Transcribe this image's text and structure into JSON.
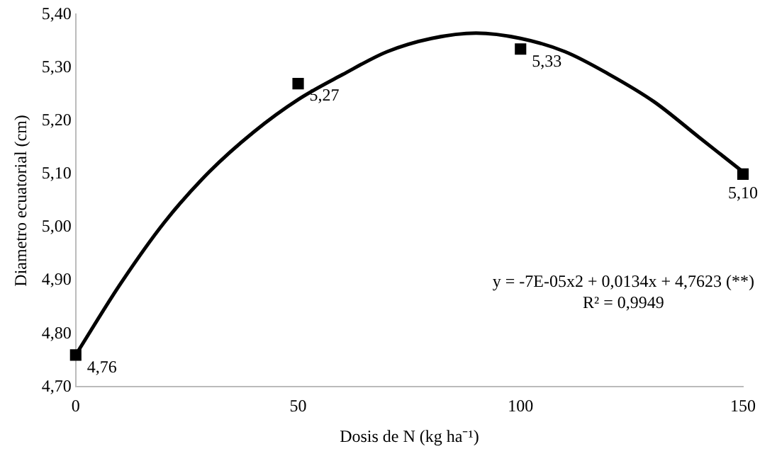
{
  "chart_data": {
    "type": "scatter",
    "xlabel": "Dosis de N (kg ha⁻¹)",
    "ylabel": "Diametro ecuatorial (cm)",
    "xlim": [
      0,
      150
    ],
    "xticks": [
      0,
      50,
      100,
      150
    ],
    "ylim": [
      4.7,
      5.4
    ],
    "yticks": [
      {
        "value": 4.7,
        "label": "4,70"
      },
      {
        "value": 4.8,
        "label": "4,80"
      },
      {
        "value": 4.9,
        "label": "4,90"
      },
      {
        "value": 5.0,
        "label": "5,00"
      },
      {
        "value": 5.1,
        "label": "5,10"
      },
      {
        "value": 5.2,
        "label": "5,20"
      },
      {
        "value": 5.3,
        "label": "5,30"
      },
      {
        "value": 5.4,
        "label": "5,40"
      }
    ],
    "grid": false,
    "legend": false,
    "series": [
      {
        "type": "line",
        "color": "#000000",
        "marker": "none",
        "line_style": "solid",
        "x": [
          0,
          10,
          20,
          30,
          40,
          50,
          60,
          70,
          80,
          90,
          100,
          110,
          120,
          130,
          140,
          150
        ],
        "values": [
          4.76,
          4.893,
          5.01,
          5.104,
          5.179,
          5.24,
          5.287,
          5.33,
          5.355,
          5.365,
          5.355,
          5.33,
          5.287,
          5.236,
          5.17,
          5.104
        ]
      },
      {
        "color": "#000000",
        "marker": "square",
        "x": [
          0,
          50,
          100,
          150
        ],
        "values": [
          4.76,
          5.27,
          5.335,
          5.1
        ],
        "value_labels": [
          "4,76",
          "5,27",
          "5,33",
          "5,10"
        ]
      }
    ],
    "annotations": [
      "y = -7E-05x2 + 0,0134x + 4,7623 (**)",
      "R² = 0,9949"
    ]
  }
}
